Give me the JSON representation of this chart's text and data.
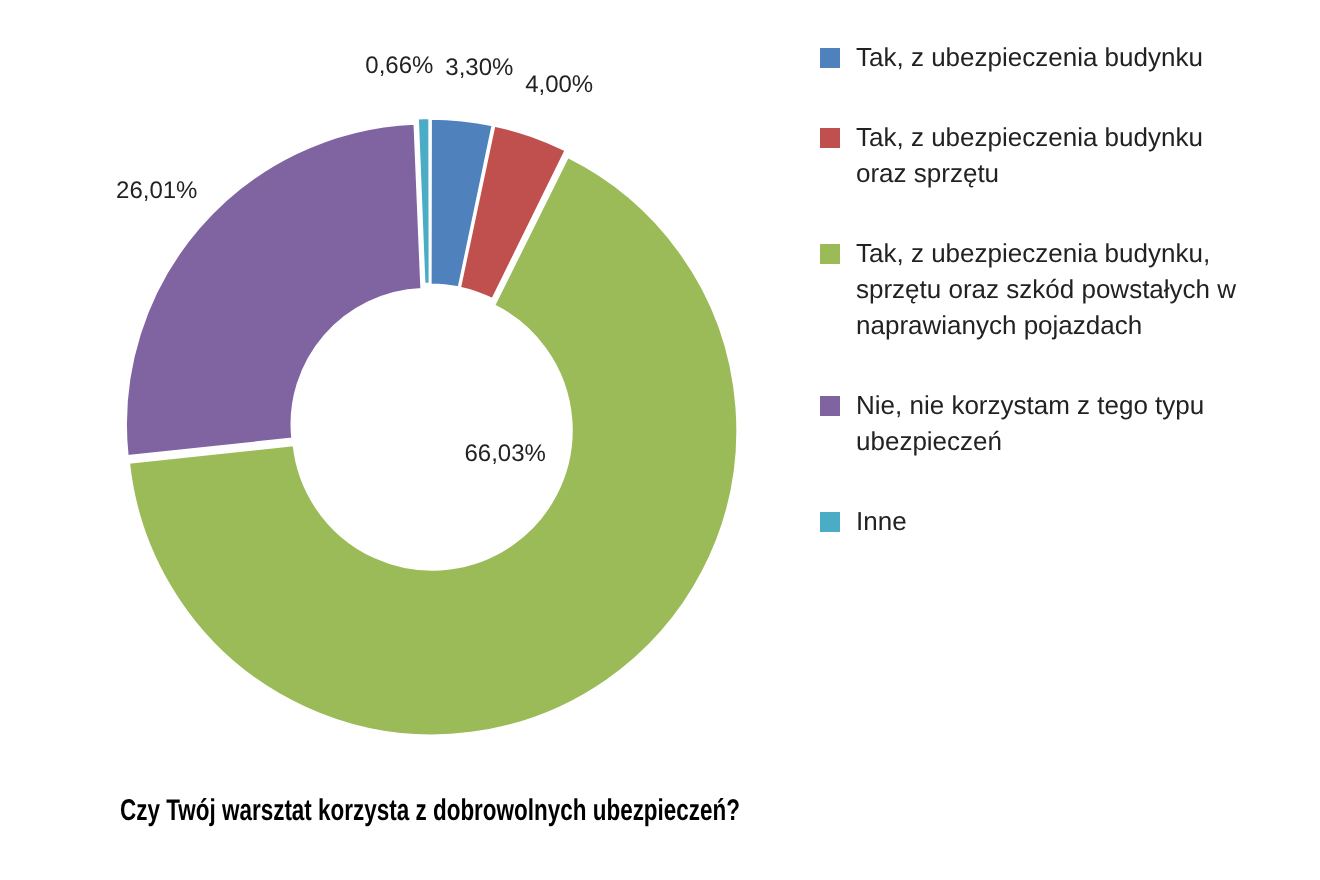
{
  "chart_data": {
    "type": "donut",
    "title": "Czy Twój warsztat korzysta z dobrowolnych ubezpieczeń?",
    "categories": [
      "Tak, z ubezpieczenia budynku",
      "Tak, z ubezpieczenia budynku oraz sprzętu",
      "Tak, z ubezpieczenia budynku, sprzętu oraz szkód powstałych w naprawianych pojazdach",
      "Nie, nie korzystam z tego typu ubezpieczeń",
      "Inne"
    ],
    "values": [
      3.3,
      4.0,
      66.03,
      26.01,
      0.66
    ],
    "value_labels": [
      "3,30%",
      "4,00%",
      "66,03%",
      "26,01%",
      "0,66%"
    ],
    "colors": [
      "#4f81bd",
      "#c0504d",
      "#9bbb59",
      "#8064a2",
      "#4bacc6"
    ],
    "legend": "right"
  }
}
